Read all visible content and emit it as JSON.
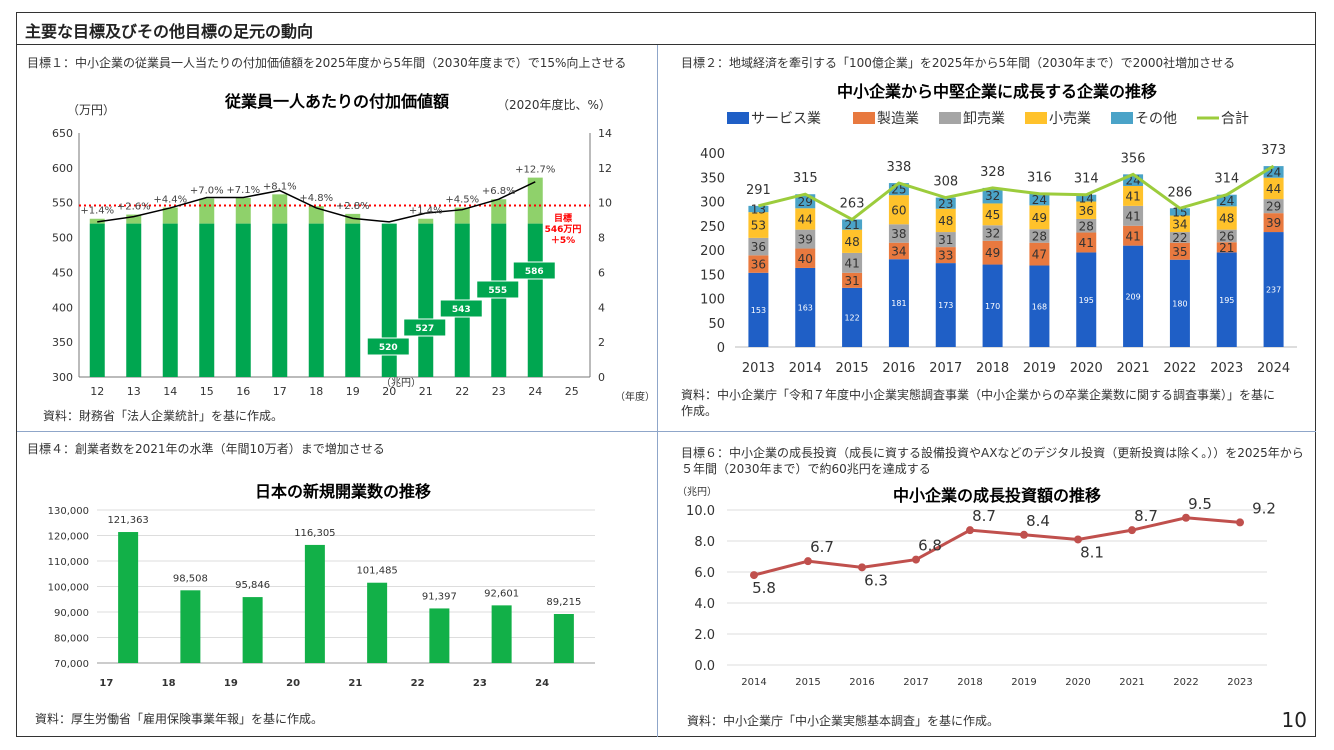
{
  "slide": {
    "title": "主要な目標及びその他目標の足元の動向",
    "page_number": "10"
  },
  "panels": {
    "p1": {
      "goal_text": "目標１：中小企業の従業員一人当たりの付加価値額を2025年度から5年間（2030年度まで）で15%向上させる",
      "note": "資料：財務省「法人企業統計」を基に作成。"
    },
    "p2": {
      "goal_text": "目標２：地域経済を牽引する「100億企業」を2025年から5年間（2030年まで）で2000社増加させる",
      "note": "資料：中小企業庁「令和７年度中小企業実態調査事業（中小企業からの卒業企業数に関する調査事業）」を基に作成。"
    },
    "p3": {
      "goal_text": "目標４：創業者数を2021年の水準（年間10万者）まで増加させる",
      "note": "資料：厚生労働省「雇用保険事業年報」を基に作成。"
    },
    "p4": {
      "goal_text": "目標６：中小企業の成長投資（成長に資する設備投資やAXなどのデジタル投資（更新投資は除く。））を2025年から５年間（2030年まで）で約60兆円を達成する",
      "note": "資料：中小企業庁「中小企業実態基本調査」を基に作成。"
    }
  },
  "colors": {
    "green_dark": "#00a650",
    "green_light": "#8fd16b",
    "target_red": "#ff0000",
    "service": "#1f5fc6",
    "manufacturing": "#e8793f",
    "wholesale": "#a5a5a5",
    "retail": "#ffc22b",
    "other": "#4aa3c8",
    "total_line": "#9ccc3c",
    "bar_green": "#12b048",
    "line_red": "#c0504d",
    "divider": "#8fa6c9"
  },
  "chart_data": [
    {
      "type": "bar",
      "title": "従業員一人あたりの付加価値額",
      "ylabel": "（万円）",
      "y2label": "（2020年度比、%）",
      "xlabel": "（年度）",
      "unit_label": "（兆円）",
      "categories": [
        "12",
        "13",
        "14",
        "15",
        "16",
        "17",
        "18",
        "19",
        "20",
        "21",
        "22",
        "23",
        "24",
        "25"
      ],
      "ylim": [
        300,
        650
      ],
      "y_ticks": [
        300,
        350,
        400,
        450,
        500,
        550,
        600,
        650
      ],
      "y2lim": [
        0,
        14
      ],
      "y2_ticks": [
        0,
        2,
        4,
        6,
        8,
        10,
        12,
        14
      ],
      "series": [
        {
          "name": "",
          "values": [
            520,
            520,
            520,
            520,
            520,
            520,
            520,
            520,
            520,
            520,
            520,
            520,
            520,
            null
          ]
        },
        {
          "name": "",
          "values": [
            527,
            533,
            543,
            556,
            557,
            562,
            545,
            534,
            520,
            527,
            543,
            555,
            586,
            null
          ]
        }
      ],
      "line_values": [
        8.9,
        9.2,
        9.7,
        10.3,
        10.3,
        10.7,
        9.7,
        9.1,
        8.9,
        9.4,
        9.6,
        10.2,
        11.2,
        null
      ],
      "pct_labels": [
        "+1.4%",
        "+2.6%",
        "+4.4%",
        "+7.0%",
        "+7.1%",
        "+8.1%",
        "+4.8%",
        "+2.8%",
        "",
        "+1.4%",
        "+4.5%",
        "+6.8%",
        "+12.7%",
        ""
      ],
      "value_boxes": [
        {
          "category": "20",
          "label": "520"
        },
        {
          "category": "21",
          "label": "527"
        },
        {
          "category": "22",
          "label": "543"
        },
        {
          "category": "23",
          "label": "555"
        },
        {
          "category": "24",
          "label": "586"
        }
      ],
      "target": {
        "value": 546,
        "label_lines": [
          "目標",
          "546万円",
          "＋5%"
        ]
      }
    },
    {
      "type": "bar",
      "stacked": true,
      "title": "中小企業から中堅企業に成長する企業の推移",
      "categories": [
        "2013",
        "2014",
        "2015",
        "2016",
        "2017",
        "2018",
        "2019",
        "2020",
        "2021",
        "2022",
        "2023",
        "2024"
      ],
      "ylim": [
        0,
        400
      ],
      "y_ticks": [
        0,
        50,
        100,
        150,
        200,
        250,
        300,
        350,
        400
      ],
      "legend_position": "top",
      "series": [
        {
          "name": "サービス業",
          "values": [
            153,
            163,
            122,
            181,
            173,
            170,
            168,
            195,
            209,
            180,
            195,
            237
          ]
        },
        {
          "name": "製造業",
          "values": [
            36,
            40,
            31,
            34,
            33,
            49,
            47,
            41,
            41,
            35,
            21,
            39
          ]
        },
        {
          "name": "卸売業",
          "values": [
            36,
            39,
            41,
            38,
            31,
            32,
            28,
            28,
            41,
            22,
            26,
            29
          ]
        },
        {
          "name": "小売業",
          "values": [
            53,
            44,
            48,
            60,
            48,
            45,
            49,
            36,
            41,
            34,
            48,
            44
          ]
        },
        {
          "name": "その他",
          "values": [
            13,
            29,
            21,
            25,
            23,
            32,
            24,
            14,
            24,
            15,
            24,
            24
          ]
        }
      ],
      "total": {
        "name": "合計",
        "values": [
          291,
          315,
          263,
          338,
          308,
          328,
          316,
          314,
          356,
          286,
          314,
          373
        ]
      }
    },
    {
      "type": "bar",
      "title": "日本の新規開業数の推移",
      "categories": [
        "17",
        "18",
        "19",
        "20",
        "21",
        "22",
        "23",
        "24"
      ],
      "values": [
        121363,
        98508,
        95846,
        116305,
        101485,
        91397,
        92601,
        89215
      ],
      "value_labels": [
        "121,363",
        "98,508",
        "95,846",
        "116,305",
        "101,485",
        "91,397",
        "92,601",
        "89,215"
      ],
      "ylim": [
        70000,
        130000
      ],
      "y_tick_labels": [
        "70,000",
        "80,000",
        "90,000",
        "100,000",
        "110,000",
        "120,000",
        "130,000"
      ],
      "grid": true
    },
    {
      "type": "line",
      "title": "中小企業の成長投資額の推移",
      "ylabel": "（兆円）",
      "categories": [
        "2014",
        "2015",
        "2016",
        "2017",
        "2018",
        "2019",
        "2020",
        "2021",
        "2022",
        "2023"
      ],
      "values": [
        5.8,
        6.7,
        6.3,
        6.8,
        8.7,
        8.4,
        8.1,
        8.7,
        9.5,
        9.2
      ],
      "value_labels": [
        "5.8",
        "6.7",
        "6.3",
        "6.8",
        "8.7",
        "8.4",
        "8.1",
        "8.7",
        "9.5",
        "9.2"
      ],
      "ylim": [
        0,
        10
      ],
      "y_tick_labels": [
        "0.0",
        "2.0",
        "4.0",
        "6.0",
        "8.0",
        "10.0"
      ],
      "grid": true
    }
  ]
}
